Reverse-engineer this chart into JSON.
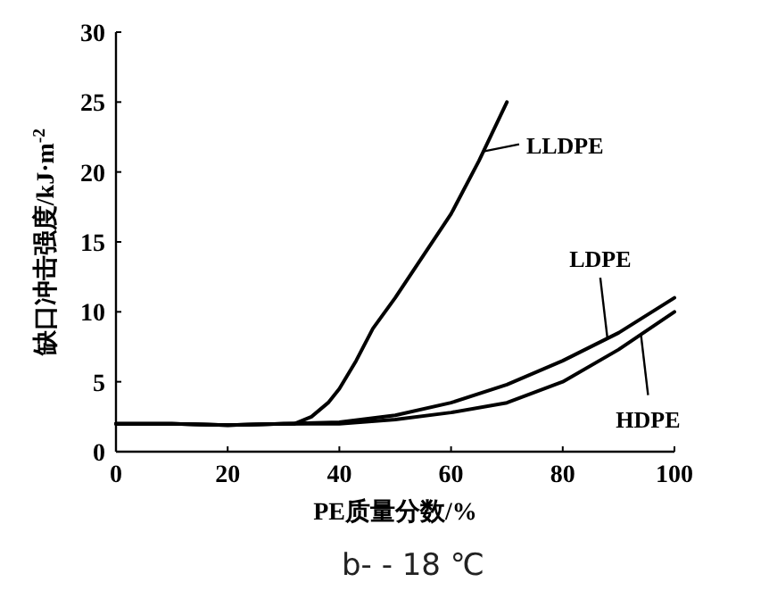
{
  "chart_data": {
    "type": "line",
    "xlabel": "PE质量分数/%",
    "ylabel": "缺口冲击强度/kJ·m$^{-2}$",
    "xlim": [
      0,
      100
    ],
    "ylim": [
      0,
      30
    ],
    "xticks": [
      0,
      20,
      40,
      60,
      80,
      100
    ],
    "yticks": [
      0,
      5,
      10,
      15,
      20,
      25,
      30
    ],
    "grid": false,
    "marker": "none",
    "annotations": [
      "b-  - 18 ℃"
    ],
    "series": [
      {
        "name": "LLDPE",
        "color": "#000000",
        "x": [
          0,
          10,
          20,
          30,
          32,
          35,
          38,
          40,
          43,
          46,
          50,
          55,
          60,
          65,
          70
        ],
        "values": [
          2,
          2,
          1.9,
          2,
          2.0,
          2.5,
          3.5,
          4.5,
          6.5,
          8.8,
          11,
          14,
          17,
          20.8,
          25
        ]
      },
      {
        "name": "LDPE",
        "color": "#000000",
        "x": [
          0,
          10,
          20,
          30,
          40,
          50,
          60,
          70,
          80,
          90,
          100
        ],
        "values": [
          2,
          2,
          1.9,
          2,
          2.1,
          2.6,
          3.5,
          4.8,
          6.5,
          8.5,
          11
        ]
      },
      {
        "name": "HDPE",
        "color": "#000000",
        "x": [
          0,
          10,
          20,
          30,
          40,
          50,
          60,
          70,
          80,
          90,
          100
        ],
        "values": [
          2,
          2,
          1.9,
          2,
          2.0,
          2.3,
          2.8,
          3.5,
          5,
          7.3,
          10
        ]
      }
    ]
  }
}
